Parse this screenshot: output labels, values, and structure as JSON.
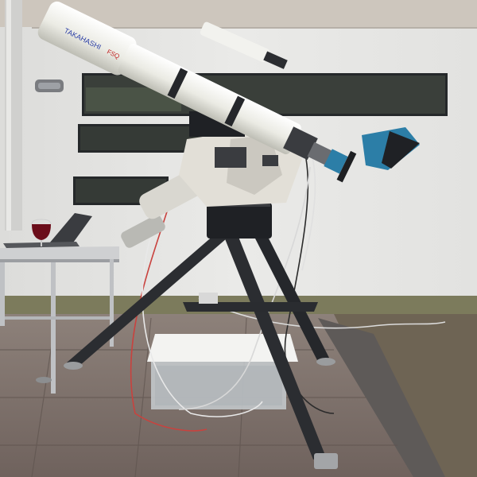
{
  "telescope": {
    "brand_text": "TAKAHASHI",
    "model_text": "FSQ"
  },
  "colors": {
    "wall": "#e6e6e4",
    "trim": "#cfcac4",
    "ground": "#8a7d76",
    "grass": "#7b7a5a",
    "tube": "#efefe9",
    "tripod": "#2b2d31",
    "mount": "#dedbd4",
    "camera": "#2c7ea7",
    "wine": "#6b0d1a"
  }
}
